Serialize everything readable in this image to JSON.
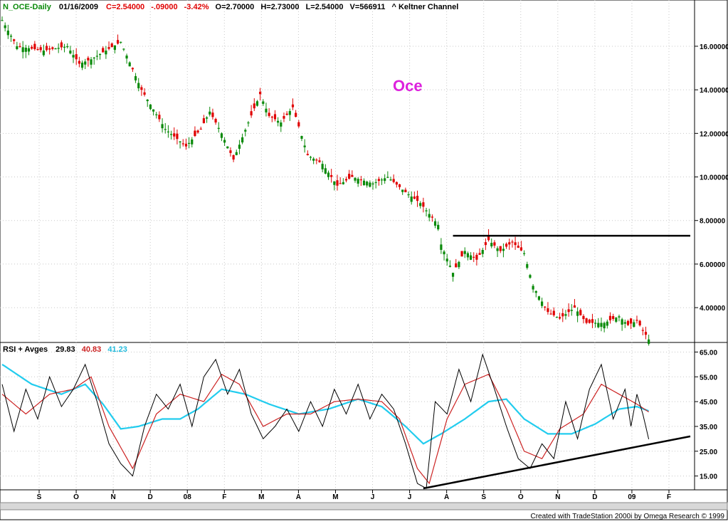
{
  "header": {
    "symbol": "N_OCE-Daily",
    "date": "01/16/2009",
    "close": "C=2.54000",
    "change": "-.09000",
    "change_pct": "-3.42%",
    "open": "O=2.70000",
    "high": "H=2.73000",
    "low": "L=2.54000",
    "volume": "V=566911",
    "indicator": "^  Keltner Channel"
  },
  "annotation": "Oce",
  "rsi_header": {
    "label": "RSI + Avges",
    "rsi": "29.83",
    "avg1": "40.83",
    "avg2": "41.23"
  },
  "footer": "Created with TradeStation 2000i by Omega Research © 1999",
  "colors": {
    "up": "#0a8a0a",
    "down": "#e00000",
    "annotation": "#dd22dd",
    "rsi_line": "#000000",
    "rsi_fast_avg": "#cc2222",
    "rsi_slow_avg": "#22ccee",
    "grid": "#c8c8c8"
  },
  "chart_data": [
    {
      "type": "candlestick",
      "ylim": [
        2.5,
        17.6
      ],
      "y_ticks": [
        "16.00000",
        "14.00000",
        "12.00000",
        "10.00000",
        "8.00000",
        "6.00000",
        "4.00000"
      ],
      "y_tick_values": [
        16,
        14,
        12,
        10,
        8,
        6,
        4
      ],
      "x_labels": [
        "S",
        "O",
        "N",
        "D",
        "08",
        "F",
        "M",
        "A",
        "M",
        "J",
        "J",
        "A",
        "S",
        "O",
        "N",
        "D",
        "09",
        "F"
      ],
      "price_path": [
        [
          0,
          17.2
        ],
        [
          5,
          16.0
        ],
        [
          14,
          15.8
        ],
        [
          22,
          16.0
        ],
        [
          26,
          15.2
        ],
        [
          30,
          15.4
        ],
        [
          35,
          15.8
        ],
        [
          40,
          16.2
        ],
        [
          47,
          14.0
        ],
        [
          55,
          12.2
        ],
        [
          62,
          11.4
        ],
        [
          67,
          12.2
        ],
        [
          70,
          13.0
        ],
        [
          74,
          12.0
        ],
        [
          78,
          10.8
        ],
        [
          83,
          12.5
        ],
        [
          87,
          13.8
        ],
        [
          90,
          12.8
        ],
        [
          94,
          12.5
        ],
        [
          98,
          13.2
        ],
        [
          103,
          11.0
        ],
        [
          108,
          10.6
        ],
        [
          113,
          9.6
        ],
        [
          118,
          10.0
        ],
        [
          125,
          9.7
        ],
        [
          130,
          10.0
        ],
        [
          136,
          9.3
        ],
        [
          141,
          8.8
        ],
        [
          147,
          7.8
        ],
        [
          148,
          6.9
        ],
        [
          152,
          5.6
        ],
        [
          156,
          6.6
        ],
        [
          160,
          6.2
        ],
        [
          164,
          7.1
        ],
        [
          168,
          6.6
        ],
        [
          172,
          7.0
        ],
        [
          176,
          6.5
        ],
        [
          179,
          5.0
        ],
        [
          184,
          3.8
        ],
        [
          188,
          3.5
        ],
        [
          193,
          4.0
        ],
        [
          197,
          3.3
        ],
        [
          203,
          3.3
        ],
        [
          208,
          3.6
        ],
        [
          211,
          3.2
        ],
        [
          214,
          3.4
        ],
        [
          218,
          2.54
        ]
      ],
      "resistance_line": {
        "y": 7.3,
        "x_start": 152,
        "x_end": 232
      }
    },
    {
      "type": "line",
      "title": "RSI + Avges",
      "ylim": [
        10,
        68
      ],
      "y_ticks": [
        "65.00",
        "55.00",
        "45.00",
        "35.00",
        "25.00",
        "15.00"
      ],
      "y_tick_values": [
        65,
        55,
        45,
        35,
        25,
        15
      ],
      "rsi_path": [
        [
          0,
          52
        ],
        [
          4,
          33
        ],
        [
          8,
          50
        ],
        [
          12,
          38
        ],
        [
          16,
          55
        ],
        [
          20,
          43
        ],
        [
          24,
          50
        ],
        [
          28,
          60
        ],
        [
          32,
          45
        ],
        [
          36,
          28
        ],
        [
          40,
          20
        ],
        [
          44,
          15
        ],
        [
          48,
          35
        ],
        [
          52,
          48
        ],
        [
          56,
          42
        ],
        [
          60,
          52
        ],
        [
          64,
          35
        ],
        [
          68,
          55
        ],
        [
          72,
          62
        ],
        [
          76,
          48
        ],
        [
          80,
          58
        ],
        [
          84,
          40
        ],
        [
          88,
          30
        ],
        [
          92,
          35
        ],
        [
          96,
          42
        ],
        [
          100,
          33
        ],
        [
          104,
          45
        ],
        [
          108,
          35
        ],
        [
          112,
          50
        ],
        [
          116,
          40
        ],
        [
          120,
          52
        ],
        [
          124,
          38
        ],
        [
          128,
          48
        ],
        [
          132,
          42
        ],
        [
          136,
          28
        ],
        [
          140,
          12
        ],
        [
          143,
          10
        ],
        [
          146,
          45
        ],
        [
          150,
          40
        ],
        [
          154,
          58
        ],
        [
          158,
          45
        ],
        [
          162,
          64
        ],
        [
          166,
          50
        ],
        [
          170,
          35
        ],
        [
          174,
          22
        ],
        [
          178,
          18
        ],
        [
          182,
          28
        ],
        [
          186,
          22
        ],
        [
          190,
          45
        ],
        [
          194,
          30
        ],
        [
          198,
          50
        ],
        [
          202,
          60
        ],
        [
          206,
          38
        ],
        [
          210,
          50
        ],
        [
          212,
          35
        ],
        [
          214,
          48
        ],
        [
          216,
          40
        ],
        [
          218,
          29.83
        ]
      ],
      "fast_avg_path": [
        [
          0,
          48
        ],
        [
          8,
          40
        ],
        [
          16,
          48
        ],
        [
          24,
          50
        ],
        [
          30,
          55
        ],
        [
          36,
          35
        ],
        [
          44,
          18
        ],
        [
          52,
          40
        ],
        [
          60,
          48
        ],
        [
          68,
          45
        ],
        [
          74,
          56
        ],
        [
          80,
          52
        ],
        [
          88,
          35
        ],
        [
          96,
          40
        ],
        [
          104,
          40
        ],
        [
          112,
          45
        ],
        [
          120,
          46
        ],
        [
          128,
          45
        ],
        [
          134,
          38
        ],
        [
          140,
          18
        ],
        [
          144,
          12
        ],
        [
          150,
          38
        ],
        [
          156,
          52
        ],
        [
          164,
          56
        ],
        [
          170,
          42
        ],
        [
          176,
          25
        ],
        [
          182,
          22
        ],
        [
          188,
          34
        ],
        [
          196,
          40
        ],
        [
          202,
          52
        ],
        [
          208,
          48
        ],
        [
          214,
          44
        ],
        [
          218,
          40.83
        ]
      ],
      "slow_avg_path": [
        [
          0,
          60
        ],
        [
          10,
          52
        ],
        [
          20,
          48
        ],
        [
          28,
          52
        ],
        [
          34,
          44
        ],
        [
          40,
          34
        ],
        [
          46,
          35
        ],
        [
          54,
          38
        ],
        [
          60,
          38
        ],
        [
          66,
          42
        ],
        [
          74,
          50
        ],
        [
          82,
          48
        ],
        [
          90,
          44
        ],
        [
          100,
          40
        ],
        [
          110,
          42
        ],
        [
          120,
          46
        ],
        [
          128,
          43
        ],
        [
          136,
          35
        ],
        [
          142,
          28
        ],
        [
          148,
          32
        ],
        [
          156,
          38
        ],
        [
          164,
          45
        ],
        [
          170,
          46
        ],
        [
          176,
          38
        ],
        [
          184,
          32
        ],
        [
          192,
          32
        ],
        [
          200,
          36
        ],
        [
          208,
          42
        ],
        [
          214,
          43
        ],
        [
          218,
          41.23
        ]
      ],
      "support_line": {
        "x_start": 142,
        "y_start": 10,
        "x_end": 232,
        "y_end": 31
      }
    }
  ]
}
